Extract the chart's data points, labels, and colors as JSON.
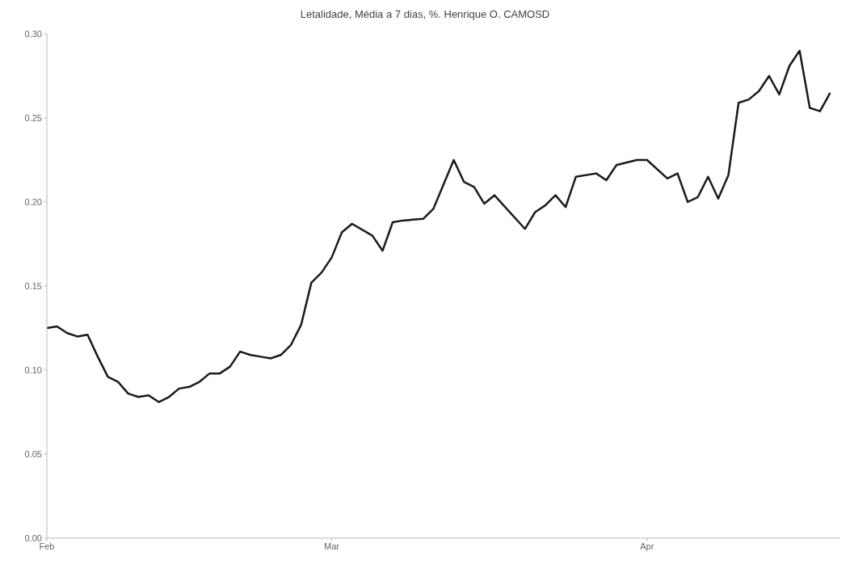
{
  "chart_data": {
    "type": "line",
    "title": "Letalidade, Média a 7 dias, %. Henrique O. CAMOSD",
    "x": [
      "--02-01",
      "--02-02",
      "--02-03",
      "--02-04",
      "--02-05",
      "--02-06",
      "--02-07",
      "--02-08",
      "--02-09",
      "--02-10",
      "--02-11",
      "--02-12",
      "--02-13",
      "--02-14",
      "--02-15",
      "--02-16",
      "--02-17",
      "--02-18",
      "--02-19",
      "--02-20",
      "--02-21",
      "--02-22",
      "--02-23",
      "--02-24",
      "--02-25",
      "--02-26",
      "--02-27",
      "--02-28",
      "--03-01",
      "--03-02",
      "--03-03",
      "--03-05",
      "--03-06",
      "--03-07",
      "--03-08",
      "--03-10",
      "--03-11",
      "--03-13",
      "--03-14",
      "--03-15",
      "--03-16",
      "--03-17",
      "--03-20",
      "--03-21",
      "--03-22",
      "--03-23",
      "--03-24",
      "--03-25",
      "--03-27",
      "--03-28",
      "--03-29",
      "--03-31",
      "--04-01",
      "--04-03",
      "--04-04",
      "--04-05",
      "--04-06",
      "--04-07",
      "--04-08",
      "--04-09",
      "--04-10",
      "--04-11",
      "--04-12",
      "--04-13",
      "--04-14",
      "--04-15",
      "--04-16",
      "--04-17",
      "--04-18",
      "--04-19"
    ],
    "series": [
      {
        "color": "#1a1a1a",
        "values": [
          0.125,
          0.126,
          0.122,
          0.12,
          0.121,
          0.108,
          0.096,
          0.093,
          0.086,
          0.084,
          0.085,
          0.081,
          0.084,
          0.089,
          0.09,
          0.093,
          0.098,
          0.098,
          0.102,
          0.111,
          0.109,
          0.108,
          0.107,
          0.109,
          0.115,
          0.127,
          0.152,
          0.158,
          0.167,
          0.182,
          0.187,
          0.18,
          0.171,
          0.188,
          0.189,
          0.19,
          0.196,
          0.225,
          0.212,
          0.209,
          0.199,
          0.204,
          0.184,
          0.194,
          0.198,
          0.204,
          0.197,
          0.215,
          0.217,
          0.213,
          0.222,
          0.225,
          0.225,
          0.214,
          0.217,
          0.2,
          0.203,
          0.215,
          0.202,
          0.216,
          0.259,
          0.261,
          0.266,
          0.275,
          0.264,
          0.281,
          0.29,
          0.256,
          0.254,
          0.265
        ]
      }
    ],
    "xlim": [
      "--02-01",
      "--04-20"
    ],
    "xticks": [
      {
        "value": "--02-01",
        "label": "Feb"
      },
      {
        "value": "--03-01",
        "label": "Mar"
      },
      {
        "value": "--04-01",
        "label": "Apr"
      }
    ],
    "ylim": [
      0,
      0.3
    ],
    "yticks": [
      {
        "value": 0,
        "label": "0.00"
      },
      {
        "value": 0.05,
        "label": "0.05"
      },
      {
        "value": 0.1,
        "label": "0.10"
      },
      {
        "value": 0.15,
        "label": "0.15"
      },
      {
        "value": 0.2,
        "label": "0.20"
      },
      {
        "value": 0.25,
        "label": "0.25"
      },
      {
        "value": 0.3,
        "label": "0.30"
      }
    ],
    "grid": false,
    "marker": "none",
    "line_style": "solid"
  }
}
